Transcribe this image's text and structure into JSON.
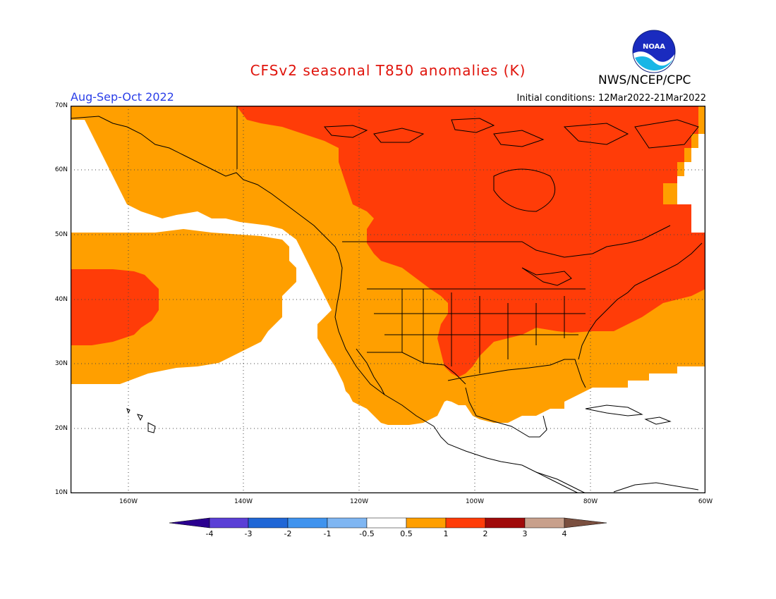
{
  "header": {
    "title": "CFSv2 seasonal T850 anomalies (K)",
    "agency": "NWS/NCEP/CPC",
    "season": "Aug-Sep-Oct 2022",
    "initial_conditions": "Initial conditions: 12Mar2022-21Mar2022",
    "logo_text": "NOAA"
  },
  "map": {
    "latitude_labels": [
      "70N",
      "60N",
      "50N",
      "40N",
      "30N",
      "20N",
      "10N"
    ],
    "longitude_labels": [
      "160W",
      "140W",
      "120W",
      "100W",
      "80W",
      "60W"
    ],
    "extent": {
      "lon_min": -172,
      "lon_max": -60,
      "lat_min": 10,
      "lat_max": 70
    }
  },
  "colorbar": {
    "labels": [
      "-4",
      "-3",
      "-2",
      "-1",
      "-0.5",
      "0.5",
      "1",
      "2",
      "3",
      "4"
    ],
    "colors": [
      "#2a008f",
      "#5a3fd6",
      "#1f66d6",
      "#3f93ee",
      "#7fb6f2",
      "#ffffff",
      "#ff9f00",
      "#ff3c08",
      "#a00a0a",
      "#c8a08c",
      "#7a4f3f"
    ]
  },
  "legend_colors": {
    "anomaly_0_5_to_1": "#ff9f00",
    "anomaly_1_to_2": "#ff3c08"
  }
}
